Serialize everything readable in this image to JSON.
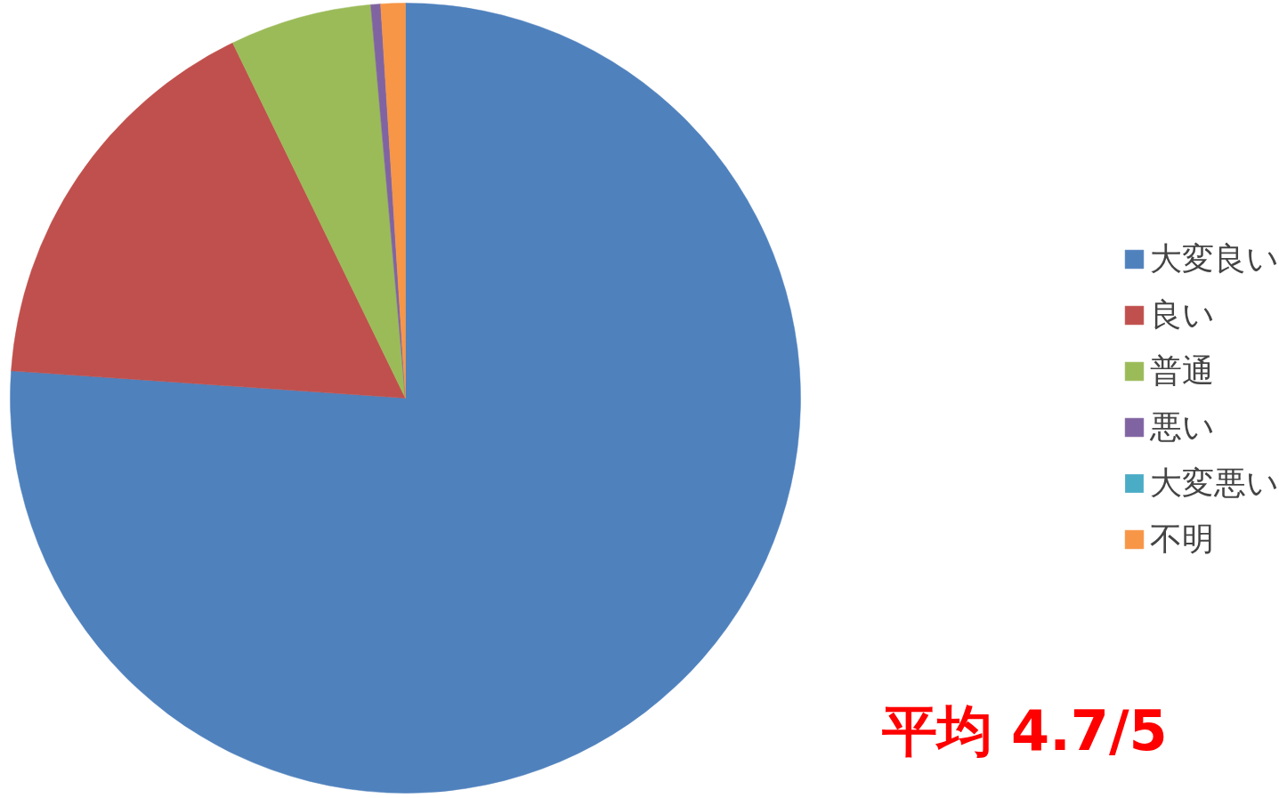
{
  "chart_data": {
    "type": "pie",
    "categories": [
      "大変良い",
      "良い",
      "普通",
      "悪い",
      "大変悪い",
      "不明"
    ],
    "values": [
      76.1,
      16.7,
      5.8,
      0.4,
      0,
      1.0
    ],
    "colors": [
      "#4f81bd",
      "#c0504d",
      "#9bbb59",
      "#8064a2",
      "#4bacc6",
      "#f79646"
    ],
    "legend": "right",
    "annotations": [
      "平均  4.7/5"
    ]
  }
}
